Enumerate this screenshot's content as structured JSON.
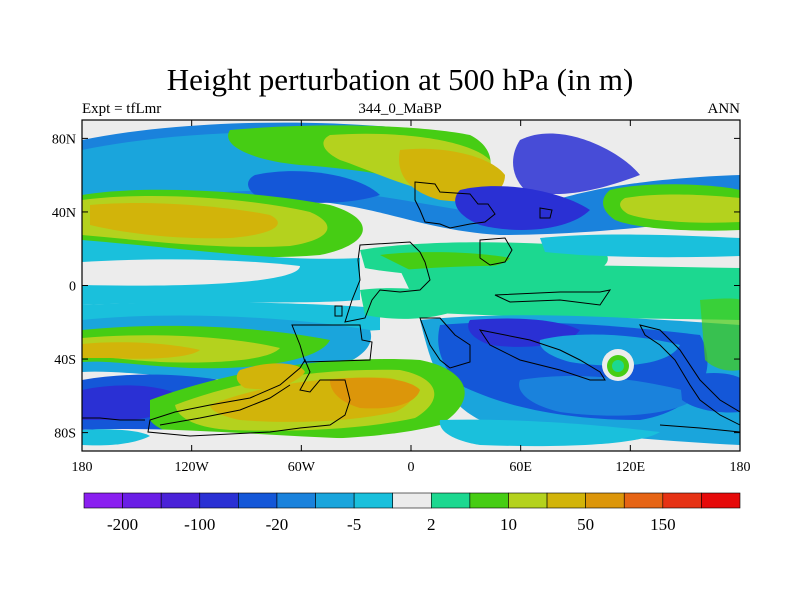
{
  "title": "Height perturbation at 500 hPa (in m)",
  "subtitle_left": "Expt = tfLmr",
  "subtitle_center": "344_0_MaBP",
  "subtitle_right": "ANN",
  "axes": {
    "lon_ticks": [
      "180",
      "120W",
      "60W",
      "0",
      "60E",
      "120E",
      "180"
    ],
    "lat_ticks": [
      "80N",
      "40N",
      "0",
      "40S",
      "80S"
    ]
  },
  "colorbar": {
    "colors": [
      "#8a1ff0",
      "#6a1ee6",
      "#4a22d8",
      "#2a30d4",
      "#1457d8",
      "#1a82dc",
      "#1aa5dc",
      "#1ac0dc",
      "#ececec",
      "#1cd890",
      "#46cd14",
      "#b4d21e",
      "#d2b40a",
      "#dc960a",
      "#e66414",
      "#e63214",
      "#e60a0a"
    ],
    "labels": [
      "-200",
      "-100",
      "-20",
      "-5",
      "2",
      "10",
      "50",
      "150"
    ],
    "label_boundary_index": [
      1,
      3,
      5,
      7,
      9,
      11,
      13,
      15
    ]
  },
  "field_colors": {
    "light_blue": "#1ac0dc",
    "mid_blue": "#1aa5dc",
    "blue": "#1a82dc",
    "deep_blue": "#1457d8",
    "dark_blue": "#2a30d4",
    "green": "#1cd890",
    "lime": "#46cd14",
    "yellow_green": "#b4d21e",
    "olive": "#d2b40a",
    "orange": "#dc960a",
    "white": "#ececec"
  }
}
